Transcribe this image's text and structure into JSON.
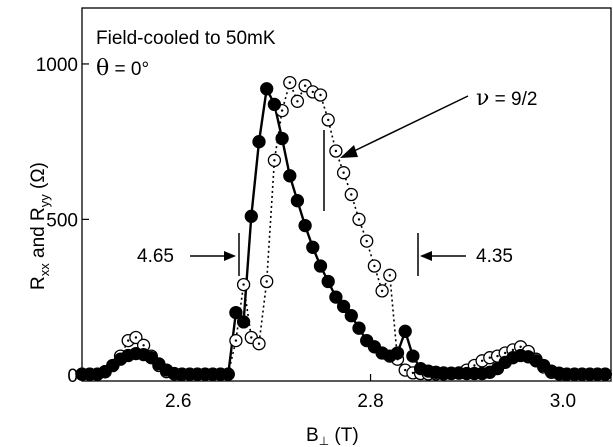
{
  "chart_data": {
    "type": "scatter",
    "annotations": {
      "line1": "Field-cooled to 50mK",
      "theta_symbol": "θ",
      "theta_rest": " = 0°",
      "nu_symbol": "ν",
      "nu_rest": " = 9/2",
      "left_field": "4.65",
      "right_field": "4.35"
    },
    "ylabel": {
      "r1": "R",
      "sub1": "xx",
      "mid": " and R",
      "sub2": "yy",
      "unit": "  (Ω)"
    },
    "xlabel": {
      "main": "B",
      "sub": "⊥",
      "unit": "  (T)"
    },
    "xlim": [
      2.5,
      3.05
    ],
    "ylim": [
      -20,
      1180
    ],
    "x_ticks": [
      {
        "value": 2.6,
        "label": "2.6"
      },
      {
        "value": 2.8,
        "label": "2.8"
      },
      {
        "value": 3.0,
        "label": "3.0"
      }
    ],
    "y_ticks": [
      {
        "value": 0,
        "label": "0"
      },
      {
        "value": 500,
        "label": "500"
      },
      {
        "value": 1000,
        "label": "1000"
      }
    ],
    "series": [
      {
        "style": "filled-solid",
        "x": [
          2.5,
          2.508,
          2.516,
          2.524,
          2.532,
          2.54,
          2.548,
          2.556,
          2.564,
          2.572,
          2.58,
          2.588,
          2.596,
          2.604,
          2.612,
          2.62,
          2.628,
          2.636,
          2.644,
          2.652,
          2.66,
          2.668,
          2.676,
          2.684,
          2.692,
          2.7,
          2.708,
          2.716,
          2.724,
          2.732,
          2.74,
          2.748,
          2.756,
          2.764,
          2.772,
          2.78,
          2.788,
          2.796,
          2.804,
          2.812,
          2.82,
          2.828,
          2.836,
          2.844,
          2.852,
          2.86,
          2.868,
          2.876,
          2.884,
          2.892,
          2.9,
          2.908,
          2.916,
          2.924,
          2.932,
          2.94,
          2.948,
          2.956,
          2.964,
          2.972,
          2.98,
          2.988,
          2.996,
          3.004,
          3.012,
          3.02,
          3.028,
          3.036,
          3.044
        ],
        "values": [
          2,
          2,
          2,
          10,
          30,
          50,
          62,
          68,
          65,
          55,
          35,
          15,
          4,
          2,
          2,
          2,
          2,
          2,
          2,
          2,
          200,
          170,
          510,
          750,
          920,
          870,
          760,
          640,
          560,
          480,
          410,
          350,
          300,
          250,
          220,
          190,
          150,
          110,
          90,
          70,
          60,
          70,
          140,
          60,
          20,
          12,
          8,
          6,
          5,
          5,
          4,
          4,
          4,
          8,
          20,
          40,
          55,
          62,
          58,
          45,
          30,
          12,
          5,
          2,
          2,
          2,
          2,
          2,
          2
        ]
      },
      {
        "style": "open-dotted",
        "x": [
          2.5,
          2.508,
          2.516,
          2.524,
          2.532,
          2.54,
          2.548,
          2.556,
          2.564,
          2.572,
          2.58,
          2.588,
          2.596,
          2.604,
          2.612,
          2.62,
          2.628,
          2.636,
          2.644,
          2.652,
          2.66,
          2.668,
          2.676,
          2.684,
          2.692,
          2.7,
          2.708,
          2.716,
          2.724,
          2.732,
          2.74,
          2.748,
          2.756,
          2.764,
          2.772,
          2.78,
          2.788,
          2.796,
          2.804,
          2.812,
          2.82,
          2.828,
          2.836,
          2.844,
          2.852,
          2.86,
          2.868,
          2.876,
          2.884,
          2.892,
          2.9,
          2.908,
          2.916,
          2.924,
          2.932,
          2.94,
          2.948,
          2.956,
          2.964,
          2.972,
          2.98,
          2.988,
          2.996,
          3.004,
          3.012,
          3.02,
          3.028,
          3.036,
          3.044
        ],
        "values": [
          2,
          2,
          2,
          10,
          30,
          60,
          110,
          120,
          95,
          60,
          30,
          10,
          3,
          2,
          2,
          2,
          2,
          2,
          2,
          2,
          110,
          290,
          120,
          100,
          300,
          690,
          850,
          940,
          880,
          930,
          910,
          900,
          820,
          720,
          650,
          580,
          500,
          430,
          350,
          270,
          320,
          50,
          15,
          6,
          4,
          3,
          3,
          3,
          4,
          6,
          15,
          30,
          45,
          55,
          60,
          70,
          80,
          90,
          75,
          50,
          25,
          8,
          3,
          2,
          2,
          2,
          2,
          2,
          2
        ]
      }
    ]
  }
}
